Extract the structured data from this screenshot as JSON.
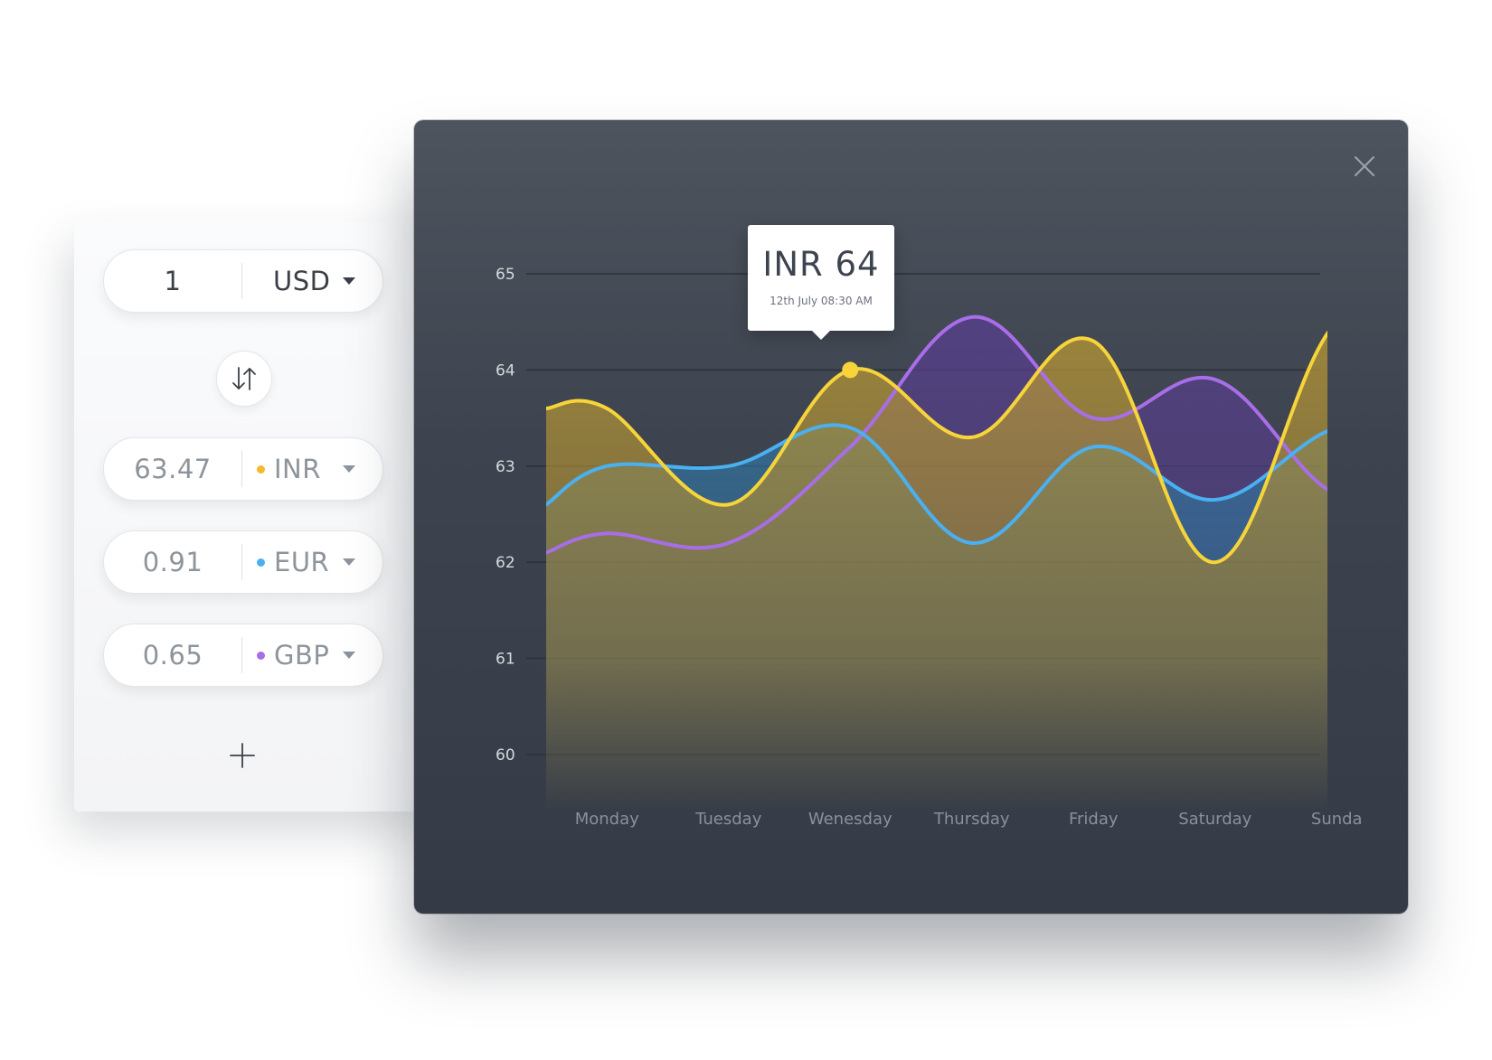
{
  "converter": {
    "base": {
      "amount": "1",
      "currency": "USD"
    },
    "rows": [
      {
        "amount": "63.47",
        "currency": "INR",
        "color": "#f5b82e"
      },
      {
        "amount": "0.91",
        "currency": "EUR",
        "color": "#4ab0f0"
      },
      {
        "amount": "0.65",
        "currency": "GBP",
        "color": "#a86ee8"
      }
    ],
    "swap_icon": "swap-arrows-icon",
    "add_icon": "plus-icon"
  },
  "chart": {
    "close_icon": "close-icon",
    "tooltip": {
      "value": "INR 64",
      "date": "12th July  08:30 AM"
    }
  },
  "chart_data": {
    "type": "area",
    "categories": [
      "Monday",
      "Tuesday",
      "Wenesday",
      "Thursday",
      "Friday",
      "Saturday",
      "Sunda"
    ],
    "y_ticks": [
      "65",
      "64",
      "63",
      "62",
      "61",
      "60"
    ],
    "ylim": [
      60,
      65
    ],
    "grid": true,
    "series": [
      {
        "name": "INR",
        "color": "#f6d43a",
        "fill": "#c9a231",
        "x": [
          0,
          0.5,
          1.5,
          2.5,
          3.5,
          4.5,
          5.5,
          6.5,
          7.5
        ],
        "values": [
          63.6,
          63.6,
          62.6,
          64.0,
          63.3,
          64.3,
          62.0,
          64.5,
          64.5
        ]
      },
      {
        "name": "EUR",
        "color": "#4ab0f0",
        "fill": "#2f7fb5",
        "x": [
          0,
          0.5,
          1.5,
          2.5,
          3.5,
          4.5,
          5.5,
          6.5,
          7.5
        ],
        "values": [
          62.6,
          63.0,
          63.0,
          63.4,
          62.2,
          63.2,
          62.65,
          63.4,
          63.4
        ]
      },
      {
        "name": "GBP",
        "color": "#a86ee8",
        "fill": "#5a3d96",
        "x": [
          0,
          0.5,
          1.5,
          2.5,
          3.5,
          4.5,
          5.5,
          6.5,
          7.5
        ],
        "values": [
          62.1,
          62.3,
          62.2,
          63.2,
          64.55,
          63.5,
          63.9,
          62.7,
          62.7
        ]
      }
    ],
    "highlight": {
      "series": "INR",
      "x": 2.5,
      "value": 64.0
    }
  }
}
